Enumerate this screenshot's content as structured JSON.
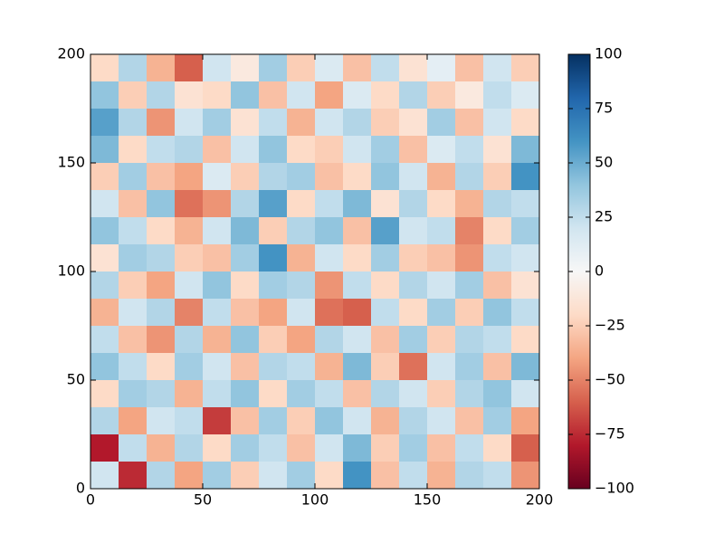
{
  "chart_data": {
    "type": "heatmap",
    "xlim": [
      0,
      200
    ],
    "ylim": [
      0,
      200
    ],
    "xticks": [
      0,
      50,
      100,
      150,
      200
    ],
    "yticks": [
      0,
      50,
      100,
      150,
      200
    ],
    "z": [
      [
        -20,
        30,
        -35,
        -60,
        20,
        -10,
        35,
        -25,
        15,
        -30,
        25,
        -15,
        10,
        -30,
        20,
        -25
      ],
      [
        40,
        -25,
        30,
        -15,
        -20,
        40,
        -30,
        20,
        -40,
        15,
        -20,
        30,
        -25,
        -10,
        25,
        15
      ],
      [
        55,
        30,
        -45,
        20,
        35,
        -15,
        25,
        -35,
        20,
        30,
        -25,
        -15,
        35,
        -30,
        20,
        -20
      ],
      [
        45,
        -20,
        25,
        30,
        -30,
        20,
        40,
        -20,
        -25,
        20,
        35,
        -30,
        15,
        25,
        -15,
        45
      ],
      [
        -25,
        35,
        -30,
        -40,
        15,
        -25,
        30,
        35,
        -30,
        -20,
        40,
        20,
        -35,
        30,
        -25,
        60
      ],
      [
        20,
        -30,
        40,
        -55,
        -45,
        30,
        55,
        -20,
        25,
        45,
        -15,
        30,
        -20,
        -35,
        30,
        25
      ],
      [
        40,
        25,
        -20,
        -35,
        20,
        45,
        -25,
        30,
        40,
        -30,
        55,
        20,
        25,
        -50,
        -20,
        35
      ],
      [
        -15,
        35,
        30,
        -25,
        -30,
        35,
        60,
        -35,
        20,
        -20,
        35,
        -25,
        -30,
        -45,
        25,
        20
      ],
      [
        30,
        -25,
        -40,
        20,
        40,
        -20,
        35,
        30,
        -45,
        25,
        -20,
        30,
        20,
        35,
        -30,
        -15
      ],
      [
        -35,
        20,
        30,
        -50,
        25,
        -30,
        -40,
        20,
        -55,
        -60,
        25,
        -20,
        35,
        -25,
        40,
        25
      ],
      [
        25,
        -30,
        -45,
        30,
        -35,
        40,
        -25,
        -40,
        30,
        20,
        -30,
        35,
        -25,
        30,
        25,
        -20
      ],
      [
        40,
        25,
        -20,
        35,
        20,
        -30,
        30,
        25,
        -35,
        45,
        -25,
        -55,
        20,
        35,
        -30,
        45
      ],
      [
        -20,
        35,
        30,
        -35,
        25,
        40,
        -20,
        35,
        25,
        -30,
        30,
        20,
        -25,
        30,
        40,
        20
      ],
      [
        30,
        -40,
        20,
        25,
        -70,
        -30,
        35,
        -25,
        40,
        20,
        -35,
        30,
        20,
        -30,
        35,
        -40
      ],
      [
        -80,
        25,
        -35,
        30,
        -20,
        35,
        25,
        -30,
        20,
        45,
        -25,
        35,
        -30,
        25,
        -20,
        -60
      ],
      [
        20,
        -75,
        30,
        -40,
        35,
        -25,
        20,
        35,
        -20,
        60,
        -30,
        25,
        -35,
        30,
        25,
        -45
      ]
    ],
    "colors": [
      "#67001f",
      "#b2182b",
      "#d6604d",
      "#f4a582",
      "#fddbc7",
      "#f7f7f7",
      "#d1e5f0",
      "#92c5de",
      "#4393c3",
      "#2166ac",
      "#053061"
    ],
    "colorbar_lim": [
      -100,
      100
    ],
    "colorbar_ticks": [
      {
        "value": -100,
        "label": "−100"
      },
      {
        "value": -75,
        "label": "−75"
      },
      {
        "value": -50,
        "label": "−50"
      },
      {
        "value": -25,
        "label": "−25"
      },
      0,
      25,
      50,
      75,
      100
    ]
  }
}
